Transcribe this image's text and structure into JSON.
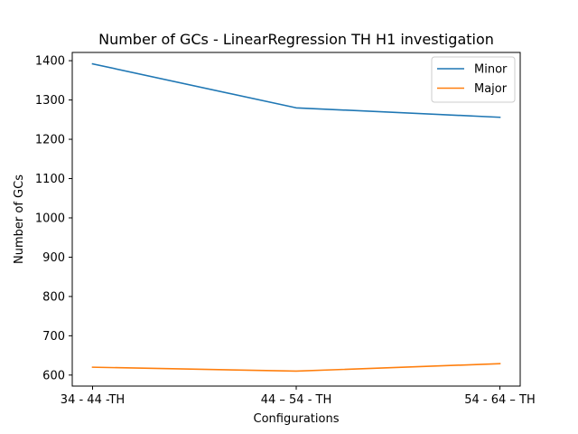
{
  "chart_data": {
    "type": "line",
    "title": "Number of GCs - LinearRegression TH H1 investigation",
    "xlabel": "Configurations",
    "ylabel": "Number of GCs",
    "categories": [
      "34 - 44 -TH",
      "44 – 54 - TH",
      "54 - 64 – TH"
    ],
    "series": [
      {
        "name": "Minor",
        "values": [
          1392,
          1280,
          1256
        ],
        "color": "#1f77b4"
      },
      {
        "name": "Major",
        "values": [
          620,
          610,
          629
        ],
        "color": "#ff7f0e"
      }
    ],
    "ylim": [
      572,
      1421
    ],
    "yticks": [
      600,
      700,
      800,
      900,
      1000,
      1100,
      1200,
      1300,
      1400
    ],
    "grid": false,
    "legend_position": "top-right"
  }
}
